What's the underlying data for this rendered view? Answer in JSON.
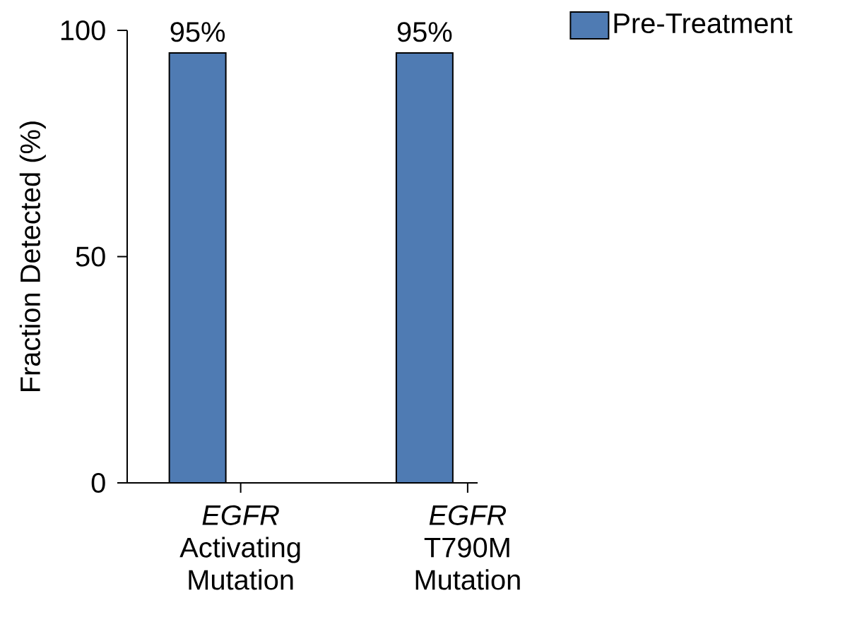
{
  "chart_data": {
    "type": "bar",
    "ylabel": "Fraction Detected (%)",
    "categories": [
      "*EGFR* Activating Mutation",
      "*EGFR* T790M Mutation"
    ],
    "series": [
      {
        "name": "Pre-Treatment",
        "color": "#4f7bb3",
        "values": [
          95,
          95
        ],
        "value_labels": [
          "95%",
          "95%"
        ]
      }
    ],
    "ylim": [
      0,
      100
    ],
    "yticks": [
      0,
      50,
      100
    ],
    "legend": "top right"
  }
}
